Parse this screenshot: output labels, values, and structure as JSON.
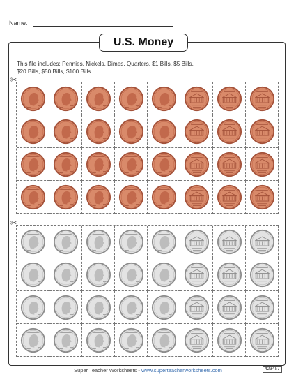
{
  "header": {
    "name_label": "Name:"
  },
  "title": "U.S. Money",
  "intro": {
    "line1": "This file includes: Pennies, Nickels, Dimes, Quarters, $1 Bills, $5 Bills,",
    "line2": "$20 Bills, $50 Bills, $100 Bills"
  },
  "cut_icon": "✂",
  "coin_sections": [
    {
      "name": "pennies",
      "rows": 4,
      "columns": 8,
      "front_columns": 5,
      "back_columns": 3,
      "colors": {
        "face": "#d98a6a",
        "rim": "#a4523a",
        "shade": "#c2694c"
      }
    },
    {
      "name": "nickels",
      "rows": 4,
      "columns": 8,
      "front_columns": 5,
      "back_columns": 3,
      "colors": {
        "face": "#e3e3e3",
        "rim": "#8d8d8d",
        "shade": "#bdbdbd"
      }
    }
  ],
  "footer": {
    "brand": "Super Teacher Worksheets - ",
    "url": "www.superteacherworksheets.com"
  },
  "doc_code": "423457"
}
